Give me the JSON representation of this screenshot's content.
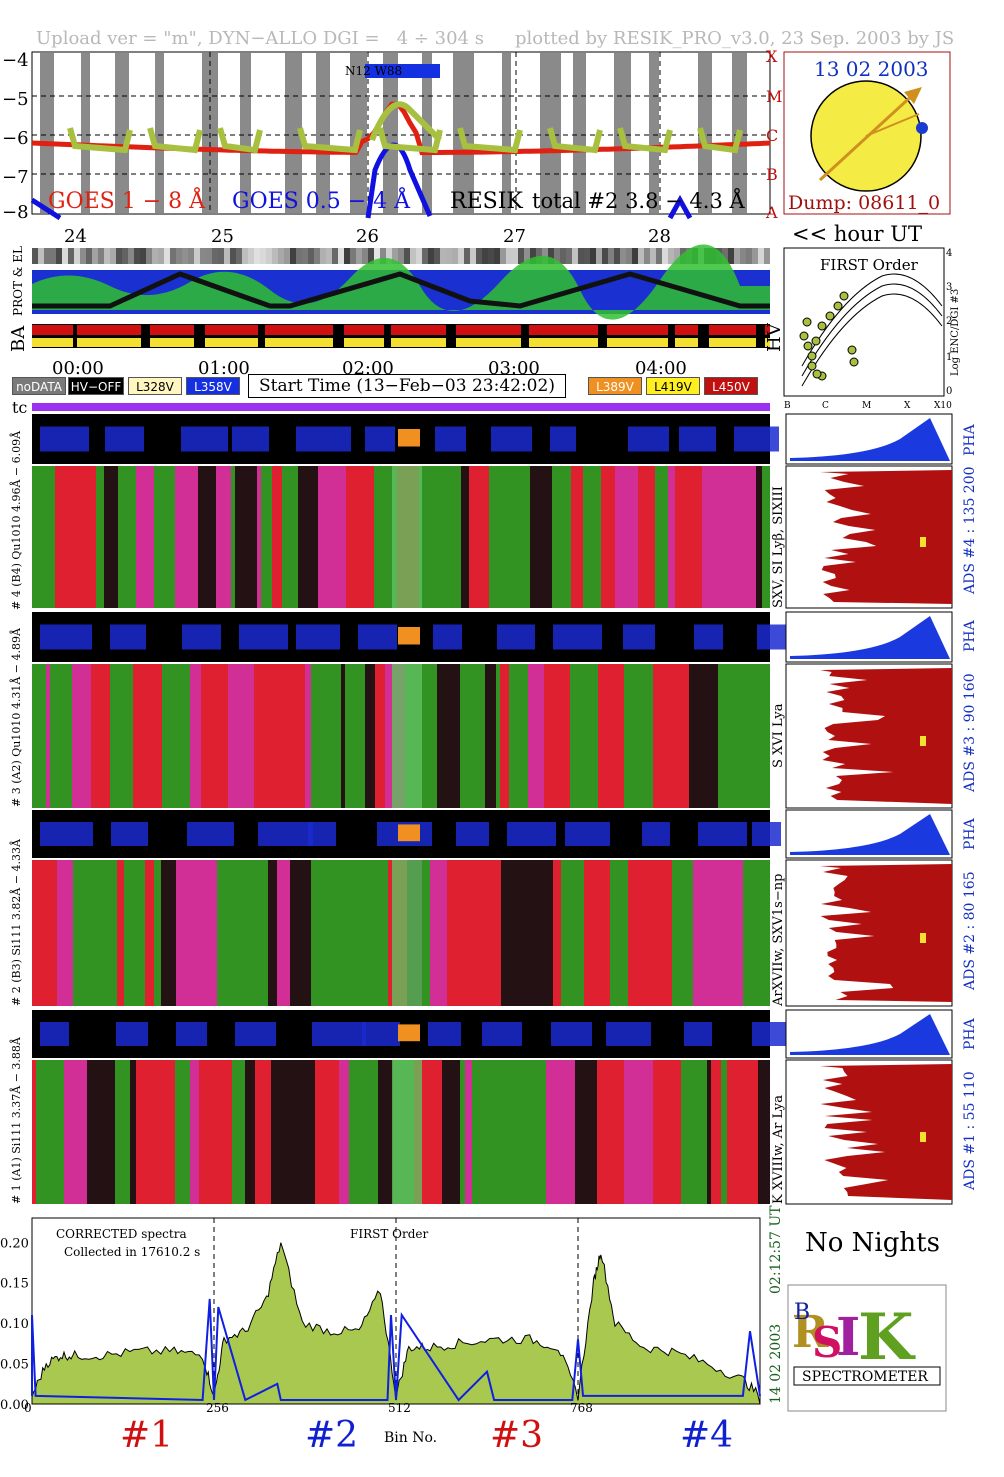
{
  "header": {
    "left": "Upload ver = \"m\", DYN−ALLO DGI =   4 ÷ 304 s",
    "right": "plotted by RESIK_PRO_v3.0, 23 Sep. 2003 by JS"
  },
  "goes_panel": {
    "y_ticks": [
      "−4",
      "−5",
      "−6",
      "−7",
      "−8"
    ],
    "flare_classes": [
      "X",
      "M",
      "C",
      "B",
      "A"
    ],
    "annotation": "N12 W88",
    "legend": {
      "goes_long": "GOES 1 − 8 Å",
      "goes_short": "GOES 0.5 − 4 Å",
      "resik": "RESIK",
      "resik_rest": "total #2  3.8 − 4.3 Å"
    },
    "hour_ticks": [
      "24",
      "25",
      "26",
      "27",
      "28"
    ],
    "hour_label": "<< hour UT",
    "colors": {
      "goes_long": "#e02010",
      "goes_short": "#1010e0",
      "resik": "#a8c040"
    }
  },
  "sun_panel": {
    "date": "13 02 2003",
    "dump": "Dump: 08611_0"
  },
  "strip_labels": {
    "prot_el": "PROT & EL",
    "ba": "BA",
    "hv": "HV"
  },
  "time_axis": {
    "ticks": [
      "00:00",
      "01:00",
      "02:00",
      "03:00",
      "04:00"
    ]
  },
  "legend_row": {
    "nodata": "noDATA",
    "hvoff": "HV−OFF",
    "v1": "L328V",
    "v2": "L358V",
    "start_time": "Start Time (13−Feb−03 23:42:02)",
    "v3": "L389V",
    "v4": "L419V",
    "v5": "L450V",
    "tc": "tc"
  },
  "first_order_panel": {
    "title": "FIRST Order",
    "ylabel": "Log ENC/DGI #3",
    "y_ticks": [
      "4",
      "3",
      "2",
      "1",
      "0"
    ],
    "x_ticks": [
      "B",
      "C",
      "M",
      "X",
      "X10"
    ]
  },
  "channels": [
    {
      "left_label": "# 4 (B4) Qu1010 4.96Å − 6.09Å",
      "lines": "SXV, SI Lyβ, SIXIII",
      "ads": "ADS #4 :   135 200",
      "pha": "PHA"
    },
    {
      "left_label": "# 3 (A2) Qu1010 4.31Å − 4.89Å",
      "lines": "S XVI Lya",
      "ads": "ADS #3 :   90 160",
      "pha": "PHA"
    },
    {
      "left_label": "# 2 (B3) Si111 3.82Å − 4.33Å",
      "lines": "ArXVIIw, SXV1s−np",
      "ads": "ADS #2 :   80 165",
      "pha": "PHA"
    },
    {
      "left_label": "# 1 (A1) Si111 3.37Å − 3.88Å",
      "lines": "K XVIIIw, Ar Lya",
      "ads": "ADS #1 :   55 110",
      "pha": "PHA"
    }
  ],
  "spectrum_panel": {
    "title1": "CORRECTED spectra",
    "title2": "Collected in 17610.2 s",
    "order": "FIRST Order",
    "y_ticks": [
      "0.20",
      "0.15",
      "0.10",
      "0.05",
      "0.00"
    ],
    "x_ticks": [
      "0",
      "256",
      "512",
      "768"
    ],
    "xlabel": "Bin No.",
    "time_label": "02:12:57 UT",
    "date_label": "14 02 2003",
    "channel_labels": [
      "#1",
      "#2",
      "#3",
      "#4"
    ]
  },
  "no_nights": "No Nights",
  "logo": {
    "spectrometer": "SPECTROMETER"
  },
  "chart_data": {
    "type": "line",
    "title": "",
    "xlabel": "Bin No.",
    "ylabel": "",
    "xlim": [
      0,
      1024
    ],
    "ylim": [
      0,
      0.23
    ],
    "series": [
      {
        "name": "",
        "x": [
          0,
          20,
          40,
          60,
          100,
          150,
          200,
          240,
          256,
          270,
          300,
          330,
          350,
          380,
          420,
          460,
          490,
          512,
          530,
          560,
          600,
          650,
          700,
          740,
          768,
          790,
          800,
          820,
          860,
          900,
          950,
          1000,
          1024
        ],
        "values": [
          0.01,
          0.05,
          0.06,
          0.06,
          0.06,
          0.065,
          0.065,
          0.06,
          0.01,
          0.08,
          0.09,
          0.13,
          0.2,
          0.1,
          0.09,
          0.09,
          0.14,
          0.01,
          0.07,
          0.07,
          0.075,
          0.08,
          0.08,
          0.07,
          0.01,
          0.15,
          0.19,
          0.1,
          0.07,
          0.065,
          0.05,
          0.03,
          0.01
        ]
      }
    ]
  }
}
